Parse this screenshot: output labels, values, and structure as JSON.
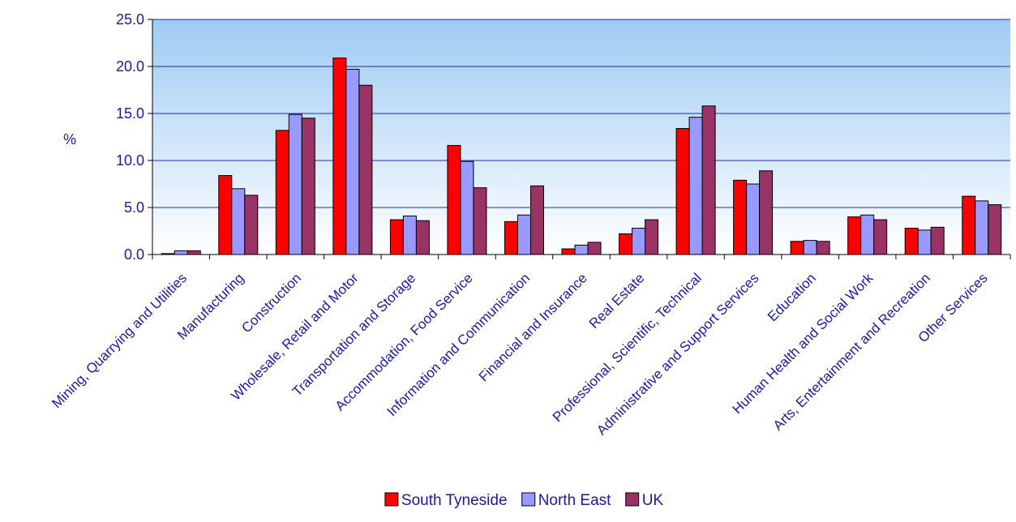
{
  "chart_data": {
    "type": "bar",
    "title": "",
    "xlabel": "",
    "ylabel": "%",
    "ylim": [
      0,
      25
    ],
    "yticks": [
      "0.0",
      "5.0",
      "10.0",
      "15.0",
      "20.0",
      "25.0"
    ],
    "grid": true,
    "legend_position": "bottom",
    "categories": [
      "Mining, Quarrying and Utilities",
      "Manufacturing",
      "Construction",
      "Wholesale, Retail and Motor",
      "Transportation and Storage",
      "Accommodation, Food Service",
      "Information and Communication",
      "Financial and Insurance",
      "Real Estate",
      "Professional, Scientific, Technical",
      "Administrative and Support Services",
      "Education",
      "Human Health and Social Work",
      "Arts, Entertainment and Recreation",
      "Other Services"
    ],
    "series": [
      {
        "name": "South Tyneside",
        "color": "#ff0000",
        "values": [
          0.1,
          8.4,
          13.2,
          20.9,
          3.7,
          11.6,
          3.5,
          0.6,
          2.2,
          13.4,
          7.9,
          1.4,
          4.0,
          2.8,
          6.2
        ]
      },
      {
        "name": "North East",
        "color": "#9999ff",
        "values": [
          0.4,
          7.0,
          14.9,
          19.7,
          4.1,
          9.9,
          4.2,
          1.0,
          2.8,
          14.6,
          7.5,
          1.5,
          4.2,
          2.6,
          5.7
        ]
      },
      {
        "name": "UK",
        "color": "#993366",
        "values": [
          0.4,
          6.3,
          14.5,
          18.0,
          3.6,
          7.1,
          7.3,
          1.3,
          3.7,
          15.8,
          8.9,
          1.4,
          3.7,
          2.9,
          5.3
        ]
      }
    ]
  }
}
